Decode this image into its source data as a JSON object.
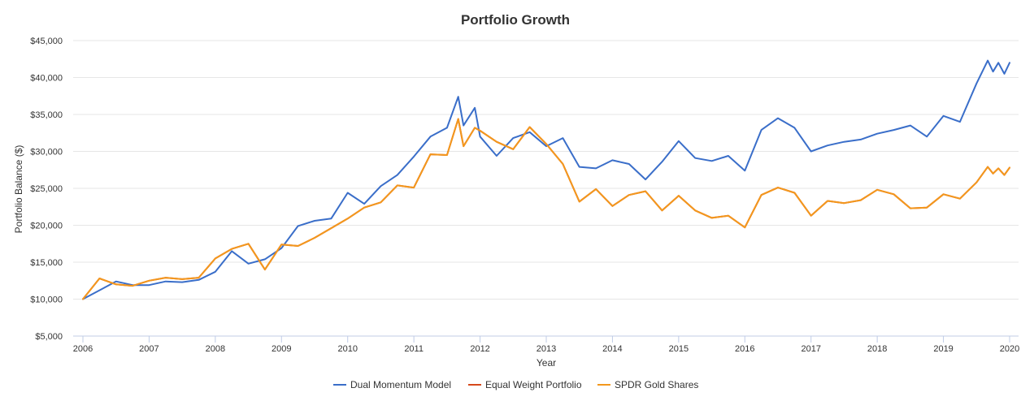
{
  "chart_data": {
    "type": "line",
    "title": "Portfolio Growth",
    "xlabel": "Year",
    "ylabel": "Portfolio Balance ($)",
    "x_ticks": [
      "2006",
      "2007",
      "2008",
      "2009",
      "2010",
      "2011",
      "2012",
      "2013",
      "2014",
      "2015",
      "2016",
      "2017",
      "2018",
      "2019",
      "2020"
    ],
    "y_ticks": [
      "$5,000",
      "$10,000",
      "$15,000",
      "$20,000",
      "$25,000",
      "$30,000",
      "$35,000",
      "$40,000",
      "$45,000"
    ],
    "xlim": [
      2006.0,
      2020.0
    ],
    "ylim": [
      5000,
      45000
    ],
    "grid": "horizontal",
    "legend_position": "bottom",
    "series": [
      {
        "name": "Dual Momentum Model",
        "color": "#3a6ec9",
        "points": [
          [
            2006.0,
            10000
          ],
          [
            2006.25,
            11200
          ],
          [
            2006.5,
            12400
          ],
          [
            2006.75,
            11900
          ],
          [
            2007.0,
            11900
          ],
          [
            2007.25,
            12400
          ],
          [
            2007.5,
            12300
          ],
          [
            2007.75,
            12600
          ],
          [
            2008.0,
            13700
          ],
          [
            2008.25,
            16500
          ],
          [
            2008.5,
            14800
          ],
          [
            2008.75,
            15400
          ],
          [
            2009.0,
            16900
          ],
          [
            2009.25,
            19900
          ],
          [
            2009.5,
            20600
          ],
          [
            2009.75,
            20900
          ],
          [
            2010.0,
            24400
          ],
          [
            2010.25,
            22900
          ],
          [
            2010.5,
            25300
          ],
          [
            2010.75,
            26800
          ],
          [
            2011.0,
            29300
          ],
          [
            2011.25,
            32000
          ],
          [
            2011.5,
            33200
          ],
          [
            2011.67,
            37400
          ],
          [
            2011.75,
            33500
          ],
          [
            2011.92,
            35900
          ],
          [
            2012.0,
            32000
          ],
          [
            2012.25,
            29400
          ],
          [
            2012.5,
            31800
          ],
          [
            2012.75,
            32600
          ],
          [
            2013.0,
            30700
          ],
          [
            2013.25,
            31800
          ],
          [
            2013.5,
            27900
          ],
          [
            2013.75,
            27700
          ],
          [
            2014.0,
            28800
          ],
          [
            2014.25,
            28300
          ],
          [
            2014.5,
            26200
          ],
          [
            2014.75,
            28600
          ],
          [
            2015.0,
            31400
          ],
          [
            2015.25,
            29100
          ],
          [
            2015.5,
            28700
          ],
          [
            2015.75,
            29400
          ],
          [
            2016.0,
            27400
          ],
          [
            2016.25,
            32900
          ],
          [
            2016.5,
            34500
          ],
          [
            2016.75,
            33200
          ],
          [
            2017.0,
            30000
          ],
          [
            2017.25,
            30800
          ],
          [
            2017.5,
            31300
          ],
          [
            2017.75,
            31600
          ],
          [
            2018.0,
            32400
          ],
          [
            2018.25,
            32900
          ],
          [
            2018.5,
            33500
          ],
          [
            2018.75,
            32000
          ],
          [
            2019.0,
            34800
          ],
          [
            2019.25,
            34000
          ],
          [
            2019.5,
            39200
          ],
          [
            2019.67,
            42300
          ],
          [
            2019.75,
            40800
          ],
          [
            2019.83,
            42000
          ],
          [
            2019.92,
            40500
          ],
          [
            2020.0,
            42000
          ]
        ]
      },
      {
        "name": "Equal Weight Portfolio",
        "color": "#d6491c",
        "points": [
          [
            2006.0,
            10000
          ],
          [
            2006.25,
            12800
          ],
          [
            2006.5,
            12000
          ],
          [
            2006.75,
            11800
          ],
          [
            2007.0,
            12500
          ],
          [
            2007.25,
            12900
          ],
          [
            2007.5,
            12700
          ],
          [
            2007.75,
            12900
          ],
          [
            2008.0,
            15500
          ],
          [
            2008.25,
            16800
          ],
          [
            2008.5,
            17500
          ],
          [
            2008.75,
            14000
          ],
          [
            2009.0,
            17400
          ],
          [
            2009.25,
            17200
          ],
          [
            2009.5,
            18300
          ],
          [
            2009.75,
            19600
          ],
          [
            2010.0,
            20900
          ],
          [
            2010.25,
            22400
          ],
          [
            2010.5,
            23100
          ],
          [
            2010.75,
            25400
          ],
          [
            2011.0,
            25100
          ],
          [
            2011.25,
            29600
          ],
          [
            2011.5,
            29500
          ],
          [
            2011.67,
            34400
          ],
          [
            2011.75,
            30700
          ],
          [
            2011.92,
            33200
          ],
          [
            2012.0,
            32800
          ],
          [
            2012.25,
            31300
          ],
          [
            2012.5,
            30300
          ],
          [
            2012.75,
            33300
          ],
          [
            2013.0,
            31000
          ],
          [
            2013.25,
            28300
          ],
          [
            2013.5,
            23200
          ],
          [
            2013.75,
            24900
          ],
          [
            2014.0,
            22600
          ],
          [
            2014.25,
            24100
          ],
          [
            2014.5,
            24600
          ],
          [
            2014.75,
            22000
          ],
          [
            2015.0,
            24000
          ],
          [
            2015.25,
            22000
          ],
          [
            2015.5,
            21000
          ],
          [
            2015.75,
            21300
          ],
          [
            2016.0,
            19700
          ],
          [
            2016.25,
            24100
          ],
          [
            2016.5,
            25100
          ],
          [
            2016.75,
            24400
          ],
          [
            2017.0,
            21300
          ],
          [
            2017.25,
            23300
          ],
          [
            2017.5,
            23000
          ],
          [
            2017.75,
            23400
          ],
          [
            2018.0,
            24800
          ],
          [
            2018.25,
            24200
          ],
          [
            2018.5,
            22300
          ],
          [
            2018.75,
            22400
          ],
          [
            2019.0,
            24200
          ],
          [
            2019.25,
            23600
          ],
          [
            2019.5,
            25800
          ],
          [
            2019.67,
            27900
          ],
          [
            2019.75,
            27000
          ],
          [
            2019.83,
            27700
          ],
          [
            2019.92,
            26800
          ],
          [
            2020.0,
            27800
          ]
        ]
      },
      {
        "name": "SPDR Gold Shares",
        "color": "#f3981d",
        "points": [
          [
            2006.0,
            10000
          ],
          [
            2006.25,
            12800
          ],
          [
            2006.5,
            12000
          ],
          [
            2006.75,
            11800
          ],
          [
            2007.0,
            12500
          ],
          [
            2007.25,
            12900
          ],
          [
            2007.5,
            12700
          ],
          [
            2007.75,
            12900
          ],
          [
            2008.0,
            15500
          ],
          [
            2008.25,
            16800
          ],
          [
            2008.5,
            17500
          ],
          [
            2008.75,
            14000
          ],
          [
            2009.0,
            17400
          ],
          [
            2009.25,
            17200
          ],
          [
            2009.5,
            18300
          ],
          [
            2009.75,
            19600
          ],
          [
            2010.0,
            20900
          ],
          [
            2010.25,
            22400
          ],
          [
            2010.5,
            23100
          ],
          [
            2010.75,
            25400
          ],
          [
            2011.0,
            25100
          ],
          [
            2011.25,
            29600
          ],
          [
            2011.5,
            29500
          ],
          [
            2011.67,
            34400
          ],
          [
            2011.75,
            30700
          ],
          [
            2011.92,
            33200
          ],
          [
            2012.0,
            32800
          ],
          [
            2012.25,
            31300
          ],
          [
            2012.5,
            30300
          ],
          [
            2012.75,
            33300
          ],
          [
            2013.0,
            31000
          ],
          [
            2013.25,
            28300
          ],
          [
            2013.5,
            23200
          ],
          [
            2013.75,
            24900
          ],
          [
            2014.0,
            22600
          ],
          [
            2014.25,
            24100
          ],
          [
            2014.5,
            24600
          ],
          [
            2014.75,
            22000
          ],
          [
            2015.0,
            24000
          ],
          [
            2015.25,
            22000
          ],
          [
            2015.5,
            21000
          ],
          [
            2015.75,
            21300
          ],
          [
            2016.0,
            19700
          ],
          [
            2016.25,
            24100
          ],
          [
            2016.5,
            25100
          ],
          [
            2016.75,
            24400
          ],
          [
            2017.0,
            21300
          ],
          [
            2017.25,
            23300
          ],
          [
            2017.5,
            23000
          ],
          [
            2017.75,
            23400
          ],
          [
            2018.0,
            24800
          ],
          [
            2018.25,
            24200
          ],
          [
            2018.5,
            22300
          ],
          [
            2018.75,
            22400
          ],
          [
            2019.0,
            24200
          ],
          [
            2019.25,
            23600
          ],
          [
            2019.5,
            25800
          ],
          [
            2019.67,
            27900
          ],
          [
            2019.75,
            27000
          ],
          [
            2019.83,
            27700
          ],
          [
            2019.92,
            26800
          ],
          [
            2020.0,
            27800
          ]
        ]
      }
    ]
  }
}
